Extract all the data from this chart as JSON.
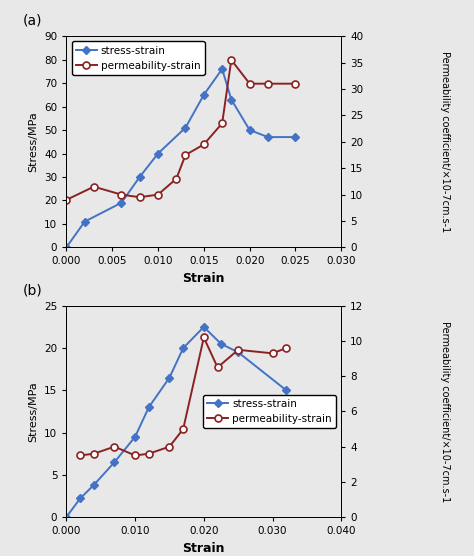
{
  "panel_a": {
    "stress_strain_x": [
      0.0,
      0.002,
      0.006,
      0.008,
      0.01,
      0.013,
      0.015,
      0.017,
      0.018,
      0.02,
      0.022,
      0.025
    ],
    "stress_strain_y": [
      0,
      11,
      19,
      30,
      40,
      51,
      65,
      76,
      63,
      50,
      47,
      47
    ],
    "perm_strain_x": [
      0.0,
      0.003,
      0.006,
      0.008,
      0.01,
      0.012,
      0.013,
      0.015,
      0.017,
      0.018,
      0.02,
      0.022,
      0.025
    ],
    "perm_strain_y": [
      9.0,
      11.5,
      10.0,
      9.5,
      10.0,
      13.0,
      17.5,
      19.5,
      23.5,
      35.5,
      31.0,
      31.0,
      31.0
    ],
    "stress_ylim": [
      0,
      90
    ],
    "perm_ylim": [
      0,
      40
    ],
    "stress_yticks": [
      0,
      10,
      20,
      30,
      40,
      50,
      60,
      70,
      80,
      90
    ],
    "perm_yticks": [
      0,
      5,
      10,
      15,
      20,
      25,
      30,
      35,
      40
    ],
    "xlim": [
      0.0,
      0.03
    ],
    "xticks": [
      0.0,
      0.005,
      0.01,
      0.015,
      0.02,
      0.025,
      0.03
    ],
    "xlabel": "Strain",
    "ylabel_left": "Stress/MPa",
    "ylabel_right": "Permeability coefficient/×10-7cm.s-1",
    "label": "(a)",
    "legend_stress": "stress-strain",
    "legend_perm": "permeability-strain"
  },
  "panel_b": {
    "stress_strain_x": [
      0.0,
      0.002,
      0.004,
      0.007,
      0.01,
      0.012,
      0.015,
      0.017,
      0.02,
      0.0225,
      0.025,
      0.032
    ],
    "stress_strain_y": [
      0,
      2.2,
      3.8,
      6.5,
      9.5,
      13.0,
      16.5,
      20.0,
      22.5,
      20.5,
      19.5,
      15.0
    ],
    "perm_strain_x": [
      0.002,
      0.004,
      0.007,
      0.01,
      0.012,
      0.015,
      0.017,
      0.02,
      0.022,
      0.025,
      0.03,
      0.032
    ],
    "perm_strain_y": [
      3.5,
      3.6,
      4.0,
      3.5,
      3.6,
      4.0,
      5.0,
      10.2,
      8.5,
      9.5,
      9.3,
      9.6
    ],
    "stress_ylim": [
      0,
      25
    ],
    "perm_ylim": [
      0,
      12
    ],
    "stress_yticks": [
      0,
      5,
      10,
      15,
      20,
      25
    ],
    "perm_yticks": [
      0,
      2,
      4,
      6,
      8,
      10,
      12
    ],
    "xlim": [
      0.0,
      0.04
    ],
    "xticks": [
      0.0,
      0.01,
      0.02,
      0.03,
      0.04
    ],
    "xlabel": "Strain",
    "ylabel_left": "Stress/MPa",
    "ylabel_right": "Permeability coefficient/×10-7cm.s-1",
    "label": "(b)",
    "legend_stress": "stress-strain",
    "legend_perm": "permeability-strain"
  },
  "blue_color": "#4472C4",
  "red_color": "#8B2222",
  "fig_bg": "#e8e8e8"
}
